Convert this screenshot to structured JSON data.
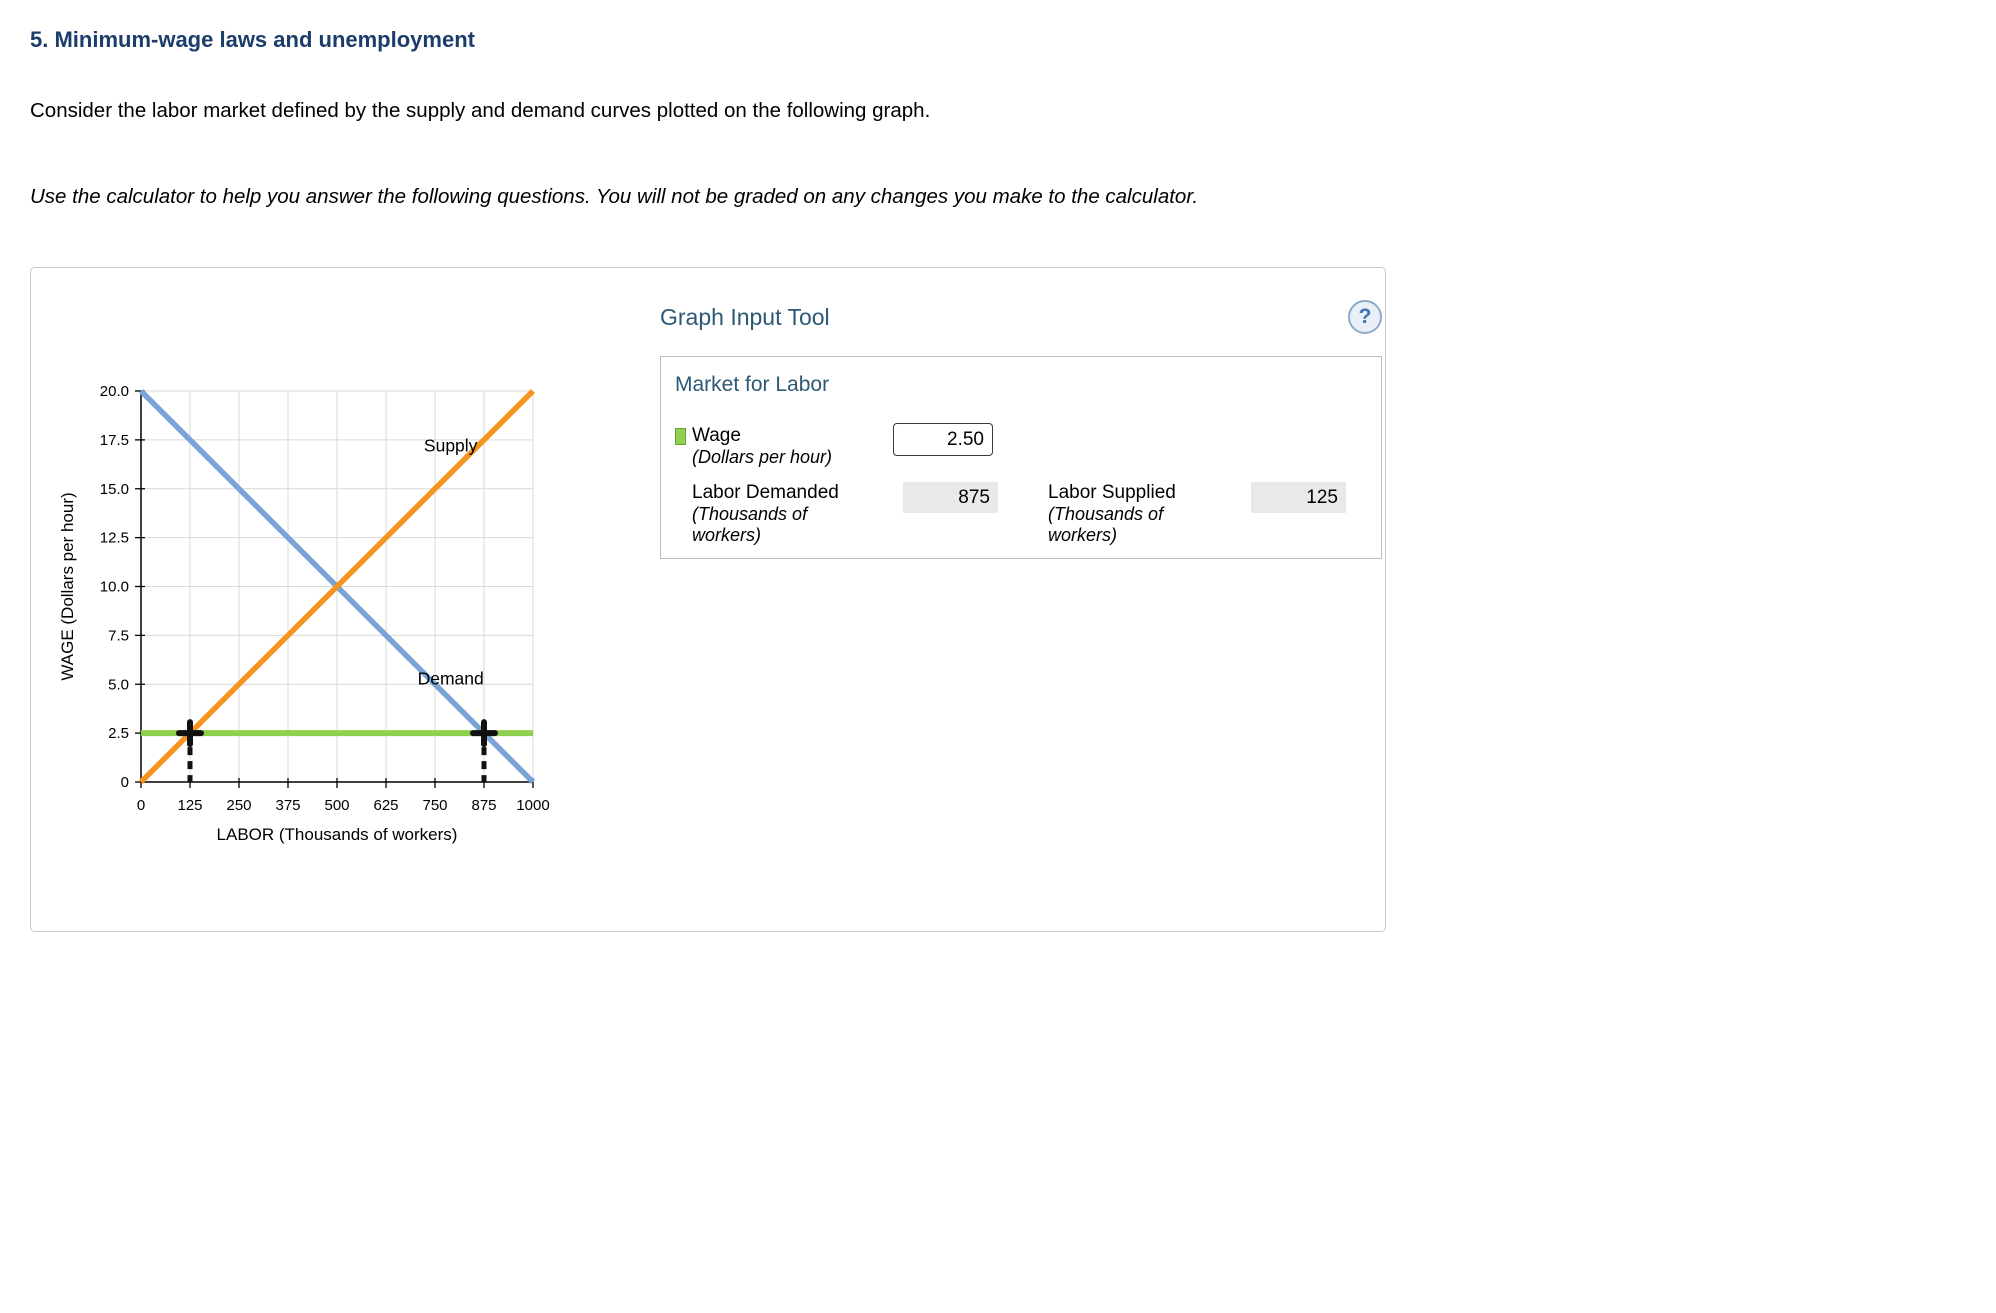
{
  "page": {
    "heading": "5. Minimum-wage laws and unemployment",
    "intro": "Consider the labor market defined by the supply and demand curves plotted on the following graph.",
    "instruction": "Use the calculator to help you answer the following questions. You will not be graded on any changes you make to the calculator."
  },
  "graph_input_tool": {
    "title": "Graph Input Tool",
    "help_icon": "?",
    "panel": {
      "title": "Market for Labor",
      "wage": {
        "label": "Wage",
        "sublabel": "(Dollars per hour)",
        "value": "2.50"
      },
      "labor_demanded": {
        "label": "Labor Demanded",
        "sublabel": "(Thousands of workers)",
        "value": "875"
      },
      "labor_supplied": {
        "label": "Labor Supplied",
        "sublabel": "(Thousands of workers)",
        "value": "125"
      }
    }
  },
  "chart_data": {
    "type": "line",
    "title": "",
    "xlabel": "LABOR (Thousands of workers)",
    "ylabel": "WAGE (Dollars per hour)",
    "xlim": [
      0,
      1000
    ],
    "ylim": [
      0,
      20
    ],
    "x_ticks": [
      0,
      125,
      250,
      375,
      500,
      625,
      750,
      875,
      1000
    ],
    "x_tick_labels": [
      "0",
      "125",
      "250",
      "375",
      "500",
      "625",
      "750",
      "875",
      "1000"
    ],
    "y_ticks": [
      0,
      2.5,
      5,
      7.5,
      10,
      12.5,
      15,
      17.5,
      20
    ],
    "y_tick_labels": [
      "0",
      "2.5",
      "5.0",
      "7.5",
      "10.0",
      "12.5",
      "15.0",
      "17.5",
      "20.0"
    ],
    "grid": true,
    "legend_position": "none",
    "series": [
      {
        "name": "Demand",
        "color": "#7aa4d8",
        "width": 5.5,
        "points": [
          [
            0,
            20
          ],
          [
            1000,
            0
          ]
        ]
      },
      {
        "name": "Supply",
        "color": "#f79420",
        "width": 5.5,
        "points": [
          [
            0,
            0
          ],
          [
            1000,
            20
          ]
        ]
      },
      {
        "name": "Wage line",
        "color": "#8fd14f",
        "width": 6,
        "points": [
          [
            0,
            2.5
          ],
          [
            1000,
            2.5
          ]
        ]
      }
    ],
    "markers": [
      {
        "name": "labor-supplied-marker",
        "x": 125,
        "y": 2.5
      },
      {
        "name": "labor-demanded-marker",
        "x": 875,
        "y": 2.5
      }
    ],
    "annotations": [
      {
        "text": "Supply",
        "x": 790,
        "y": 16.9
      },
      {
        "text": "Demand",
        "x": 790,
        "y": 5.0
      }
    ]
  }
}
